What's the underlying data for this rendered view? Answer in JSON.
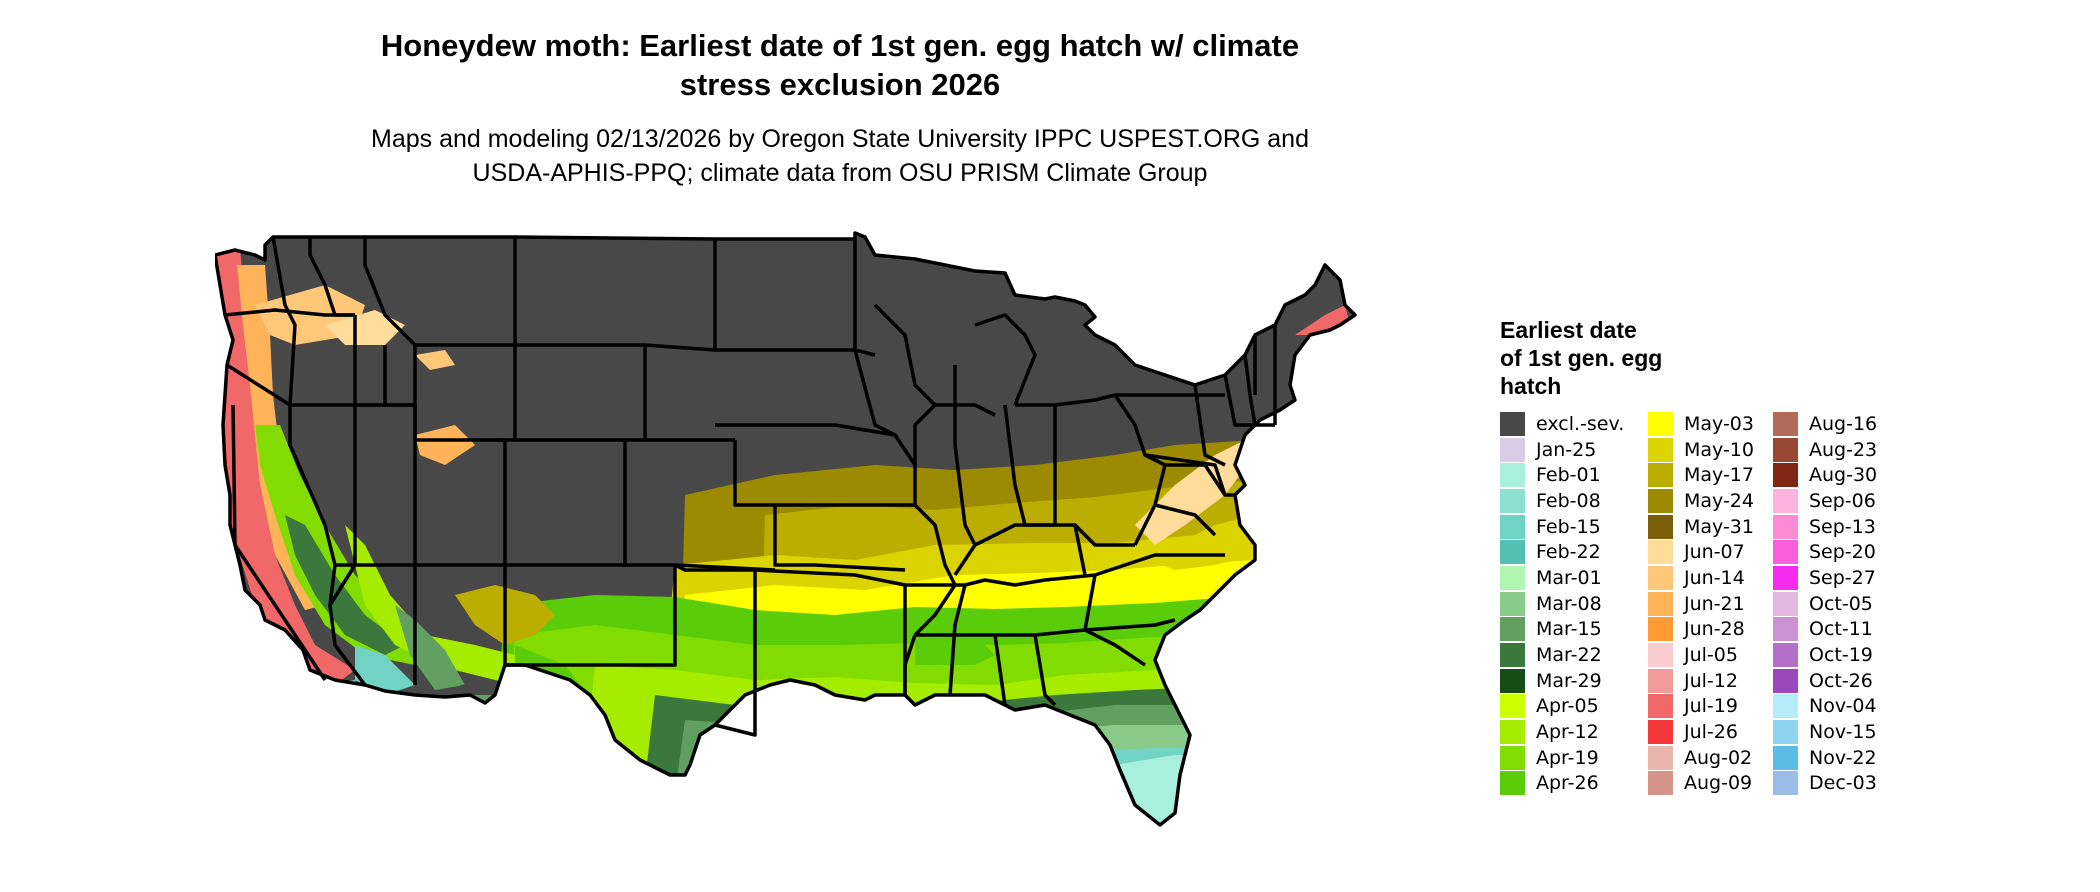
{
  "title_line1": "Honeydew moth: Earliest date of 1st gen. egg hatch w/ climate",
  "title_line2": "stress exclusion 2026",
  "subtitle_line1": "Maps and modeling 02/13/2026 by Oregon State University IPPC USPEST.ORG and",
  "subtitle_line2": "USDA-APHIS-PPQ; climate data from OSU PRISM Climate Group",
  "legend": {
    "title_line1": "Earliest date",
    "title_line2": "of 1st gen. egg",
    "title_line3": "hatch",
    "columns": [
      [
        {
          "label": "excl.-sev.",
          "color": "#484848"
        },
        {
          "label": "Jan-25",
          "color": "#d8cce6"
        },
        {
          "label": "Feb-01",
          "color": "#a8f0dc"
        },
        {
          "label": "Feb-08",
          "color": "#8ce0cf"
        },
        {
          "label": "Feb-15",
          "color": "#70d3c4"
        },
        {
          "label": "Feb-22",
          "color": "#52c0b3"
        },
        {
          "label": "Mar-01",
          "color": "#b2f5b2"
        },
        {
          "label": "Mar-08",
          "color": "#8acb8a"
        },
        {
          "label": "Mar-15",
          "color": "#62a062"
        },
        {
          "label": "Mar-22",
          "color": "#3b783b"
        },
        {
          "label": "Mar-29",
          "color": "#164d16"
        },
        {
          "label": "Apr-05",
          "color": "#ccff00"
        },
        {
          "label": "Apr-12",
          "color": "#a6ec00"
        },
        {
          "label": "Apr-19",
          "color": "#82dc00"
        },
        {
          "label": "Apr-26",
          "color": "#5acc0a"
        }
      ],
      [
        {
          "label": "May-03",
          "color": "#ffff00"
        },
        {
          "label": "May-10",
          "color": "#dcd400"
        },
        {
          "label": "May-17",
          "color": "#bcae00"
        },
        {
          "label": "May-24",
          "color": "#9c8a00"
        },
        {
          "label": "May-31",
          "color": "#7a5e0a"
        },
        {
          "label": "Jun-07",
          "color": "#ffdc9a"
        },
        {
          "label": "Jun-14",
          "color": "#ffc878"
        },
        {
          "label": "Jun-21",
          "color": "#ffb45a"
        },
        {
          "label": "Jun-28",
          "color": "#ff9a36"
        },
        {
          "label": "Jul-05",
          "color": "#f8cccc"
        },
        {
          "label": "Jul-12",
          "color": "#f29a9a"
        },
        {
          "label": "Jul-19",
          "color": "#f06868"
        },
        {
          "label": "Jul-26",
          "color": "#f53838"
        },
        {
          "label": "Aug-02",
          "color": "#e8b6ac"
        },
        {
          "label": "Aug-09",
          "color": "#d4948a"
        }
      ],
      [
        {
          "label": "Aug-16",
          "color": "#b26a5a"
        },
        {
          "label": "Aug-23",
          "color": "#9a4634"
        },
        {
          "label": "Aug-30",
          "color": "#822614"
        },
        {
          "label": "Sep-06",
          "color": "#fcb2dc"
        },
        {
          "label": "Sep-13",
          "color": "#fc8ad4"
        },
        {
          "label": "Sep-20",
          "color": "#fa5edc"
        },
        {
          "label": "Sep-27",
          "color": "#f52cf0"
        },
        {
          "label": "Oct-05",
          "color": "#e2b8e2"
        },
        {
          "label": "Oct-11",
          "color": "#cc92d4"
        },
        {
          "label": "Oct-19",
          "color": "#b470c8"
        },
        {
          "label": "Oct-26",
          "color": "#9c48bc"
        },
        {
          "label": "Nov-04",
          "color": "#b4ecfc"
        },
        {
          "label": "Nov-15",
          "color": "#8cd4f0"
        },
        {
          "label": "Nov-22",
          "color": "#5cbce8"
        },
        {
          "label": "Dec-03",
          "color": "#9cbce8"
        }
      ]
    ]
  }
}
